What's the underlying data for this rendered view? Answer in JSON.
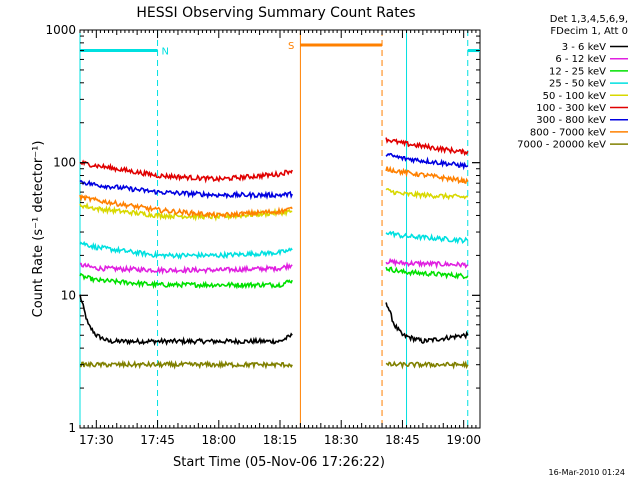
{
  "chart_data": {
    "type": "line",
    "title": "HESSI Observing Summary Count Rates",
    "xlabel": "Start Time (05-Nov-06 17:26:22)",
    "ylabel": "Count Rate (s⁻¹ detector⁻¹)",
    "yscale": "log",
    "xlim": [
      "17:26",
      "19:04"
    ],
    "ylim": [
      1,
      1000
    ],
    "x_ticks": [
      "17:30",
      "17:45",
      "18:00",
      "18:15",
      "18:30",
      "18:45",
      "19:00"
    ],
    "y_ticks": [
      "1",
      "10",
      "100",
      "1000"
    ],
    "grid": false,
    "legend_position": "right, outside plot",
    "legend_header": [
      "Det 1,3,4,5,6,9,",
      "FDecim 1, Att 0"
    ],
    "series": [
      {
        "name": "3 - 6 keV",
        "color": "#000000",
        "segments": [
          {
            "x": [
              "17:26",
              "17:28",
              "17:30",
              "17:33",
              "17:45",
              "18:00",
              "18:15",
              "18:18"
            ],
            "y": [
              10,
              6,
              5,
              4.5,
              4.5,
              4.5,
              4.5,
              5
            ]
          },
          {
            "x": [
              "18:41",
              "18:43",
              "18:45",
              "18:50",
              "19:00",
              "19:01"
            ],
            "y": [
              9,
              6,
              5,
              4.5,
              5,
              5
            ]
          }
        ]
      },
      {
        "name": "6 - 12 keV",
        "color": "#e020e0",
        "segments": [
          {
            "x": [
              "17:26",
              "17:30",
              "17:45",
              "18:00",
              "18:15",
              "18:18"
            ],
            "y": [
              17,
              16,
              15.5,
              15.5,
              16,
              17
            ]
          },
          {
            "x": [
              "18:41",
              "18:45",
              "19:00",
              "19:01"
            ],
            "y": [
              18,
              17.5,
              17,
              17
            ]
          }
        ]
      },
      {
        "name": "12 - 25 keV",
        "color": "#00e000",
        "segments": [
          {
            "x": [
              "17:26",
              "17:30",
              "17:45",
              "18:00",
              "18:15",
              "18:18"
            ],
            "y": [
              14,
              13,
              12,
              12,
              12,
              13
            ]
          },
          {
            "x": [
              "18:41",
              "18:45",
              "19:00",
              "19:01"
            ],
            "y": [
              16,
              15,
              14,
              14
            ]
          }
        ]
      },
      {
        "name": "25 - 50 keV",
        "color": "#00e0e0",
        "segments": [
          {
            "x": [
              "17:26",
              "17:30",
              "17:45",
              "18:00",
              "18:15",
              "18:18"
            ],
            "y": [
              25,
              23,
              20,
              20,
              21,
              22
            ]
          },
          {
            "x": [
              "18:41",
              "18:45",
              "19:00",
              "19:01"
            ],
            "y": [
              30,
              28,
              26,
              26
            ]
          }
        ]
      },
      {
        "name": "50 - 100 keV",
        "color": "#d8d800",
        "segments": [
          {
            "x": [
              "17:26",
              "17:30",
              "17:45",
              "18:00",
              "18:15",
              "18:18"
            ],
            "y": [
              48,
              45,
              40,
              39,
              42,
              43
            ]
          },
          {
            "x": [
              "18:41",
              "18:45",
              "19:00",
              "19:01"
            ],
            "y": [
              62,
              58,
              55,
              55
            ]
          }
        ]
      },
      {
        "name": "100 - 300 keV",
        "color": "#e00000",
        "segments": [
          {
            "x": [
              "17:26",
              "17:30",
              "17:45",
              "18:00",
              "18:15",
              "18:18"
            ],
            "y": [
              100,
              95,
              80,
              75,
              82,
              88
            ]
          },
          {
            "x": [
              "18:41",
              "18:45",
              "19:00",
              "19:01"
            ],
            "y": [
              150,
              140,
              120,
              122
            ]
          }
        ]
      },
      {
        "name": "300 - 800 keV",
        "color": "#0000e0",
        "segments": [
          {
            "x": [
              "17:26",
              "17:30",
              "17:45",
              "18:00",
              "18:15",
              "18:18"
            ],
            "y": [
              72,
              68,
              60,
              57,
              57,
              58
            ]
          },
          {
            "x": [
              "18:41",
              "18:45",
              "19:00",
              "19:01"
            ],
            "y": [
              115,
              108,
              95,
              95
            ]
          }
        ]
      },
      {
        "name": "800 - 7000 keV",
        "color": "#ff8000",
        "segments": [
          {
            "x": [
              "17:26",
              "17:30",
              "17:45",
              "18:00",
              "18:15",
              "18:18"
            ],
            "y": [
              55,
              52,
              44,
              40,
              43,
              45
            ]
          },
          {
            "x": [
              "18:41",
              "18:45",
              "19:00",
              "19:01"
            ],
            "y": [
              90,
              85,
              73,
              72
            ]
          }
        ]
      },
      {
        "name": "7000 - 20000 keV",
        "color": "#808000",
        "segments": [
          {
            "x": [
              "17:26",
              "17:45",
              "18:00",
              "18:15",
              "18:18"
            ],
            "y": [
              3,
              3,
              3,
              3,
              3
            ]
          },
          {
            "x": [
              "18:41",
              "18:45",
              "19:00",
              "19:01"
            ],
            "y": [
              3,
              3,
              3,
              3
            ]
          }
        ]
      }
    ],
    "annotations": [
      {
        "label": "N",
        "color": "#00e0e0",
        "bar_x": [
          "17:26",
          "17:45"
        ],
        "marker_x": "17:45",
        "y": 700
      },
      {
        "label": "S",
        "color": "#ff8000",
        "bar_x": [
          "18:20",
          "18:40"
        ],
        "marker_x": "18:40",
        "y": 770
      },
      {
        "label": "",
        "color": "#00e0e0",
        "bar_x": [
          "19:01",
          "19:04"
        ],
        "marker_x": "19:01",
        "y": 700
      }
    ],
    "vlines": [
      {
        "x": "17:26",
        "color": "#00e0e0",
        "style": "solid"
      },
      {
        "x": "17:45",
        "color": "#00e0e0",
        "style": "dashed"
      },
      {
        "x": "18:20",
        "color": "#ff8000",
        "style": "solid"
      },
      {
        "x": "18:40",
        "color": "#ff8000",
        "style": "dashed"
      },
      {
        "x": "18:46",
        "color": "#00e0e0",
        "style": "solid"
      },
      {
        "x": "19:01",
        "color": "#00e0e0",
        "style": "dashed"
      }
    ]
  },
  "footer": {
    "timestamp": "16-Mar-2010 01:24"
  }
}
